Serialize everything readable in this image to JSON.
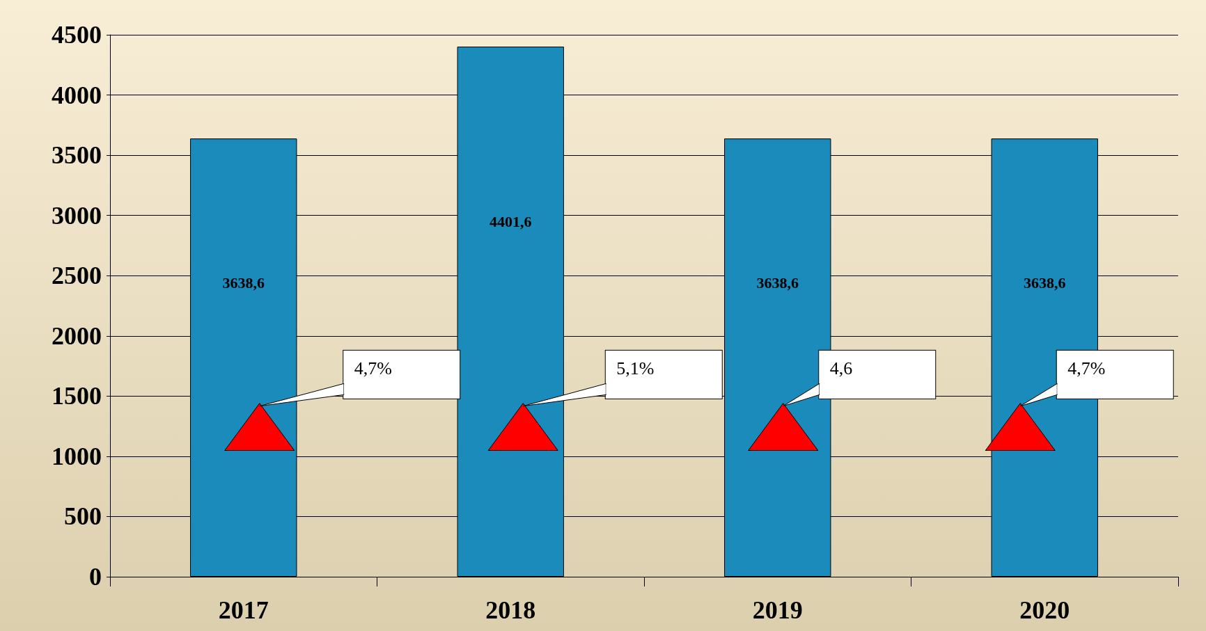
{
  "chart_data": {
    "type": "bar",
    "categories": [
      "2017",
      "2018",
      "2019",
      "2020"
    ],
    "series": [
      {
        "color": "#1a8bbb",
        "values": [
          3638.6,
          4401.6,
          3638.6,
          3638.6
        ],
        "value_labels": [
          "3638,6",
          "4401,6",
          "3638,6",
          "3638,6"
        ]
      }
    ],
    "ylim": [
      0,
      4500
    ],
    "yticks": [
      0,
      500,
      1000,
      1500,
      2000,
      2500,
      3000,
      3500,
      4000,
      4500
    ],
    "grid": "y",
    "annotations": [
      "4,7%",
      "5,1%",
      "4,6",
      "4,7%"
    ]
  }
}
